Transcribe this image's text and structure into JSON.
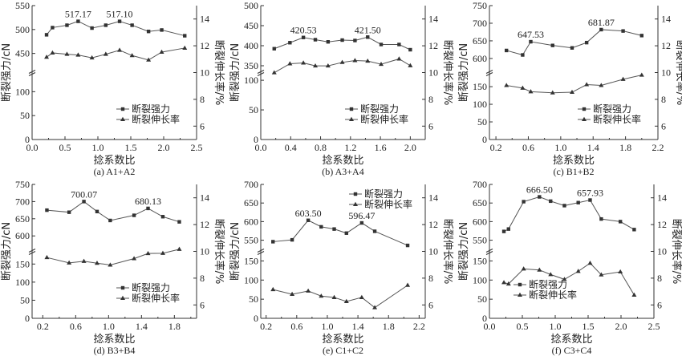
{
  "chart_data": [
    {
      "type": "line",
      "caption": "(a) A1+A2",
      "xlabel": "捻系数比",
      "ylabel_left": "断裂强力/cN",
      "ylabel_right": "断裂伸长率/%",
      "xlim": [
        0,
        2.5
      ],
      "x_ticks": [
        "0.0",
        "0.5",
        "1.0",
        "1.5",
        "2.0",
        "2.5"
      ],
      "left_lower_range": [
        0,
        140
      ],
      "left_upper_range": [
        410,
        550
      ],
      "left_ticks_lower": [
        "0",
        "50",
        "100"
      ],
      "left_ticks_upper": [
        "450",
        "500",
        "550"
      ],
      "right_range": [
        5,
        15
      ],
      "right_ticks": [
        "6",
        "8",
        "10",
        "12",
        "14"
      ],
      "legend": {
        "position": "bottom-right",
        "entries": [
          "断裂强力",
          "断裂伸长率"
        ]
      },
      "series": [
        {
          "name": "断裂强力",
          "axis": "left",
          "marker": "square",
          "x": [
            0.22,
            0.31,
            0.53,
            0.7,
            0.91,
            1.12,
            1.33,
            1.52,
            1.77,
            1.97,
            2.32
          ],
          "y": [
            489,
            504,
            509,
            517.17,
            503,
            509,
            517.1,
            509,
            496,
            499,
            487
          ]
        },
        {
          "name": "断裂伸长率",
          "axis": "right",
          "marker": "triangle",
          "x": [
            0.22,
            0.31,
            0.53,
            0.7,
            0.91,
            1.12,
            1.33,
            1.52,
            1.77,
            1.97,
            2.32
          ],
          "y": [
            11.15,
            11.47,
            11.37,
            11.31,
            11.1,
            11.37,
            11.67,
            11.27,
            10.94,
            11.53,
            11.83
          ]
        }
      ],
      "annotations": [
        {
          "text": "517.17",
          "x": 0.7,
          "y": 517.17
        },
        {
          "text": "517.10",
          "x": 1.33,
          "y": 517.1
        }
      ]
    },
    {
      "type": "line",
      "caption": "(b) A3+A4",
      "xlabel": "捻系数比",
      "ylabel_left": "断裂强力/cN",
      "ylabel_right": "断裂伸长率/%",
      "xlim": [
        0,
        2.2
      ],
      "x_ticks": [
        "0.0",
        "0.4",
        "0.8",
        "1.2",
        "1.6",
        "2.0"
      ],
      "left_lower_range": [
        0,
        113
      ],
      "left_upper_range": [
        333,
        500
      ],
      "left_ticks_lower": [
        "0",
        "50",
        "100"
      ],
      "left_ticks_upper": [
        "350",
        "400",
        "450",
        "500"
      ],
      "right_range": [
        5,
        15
      ],
      "right_ticks": [
        "6",
        "8",
        "10",
        "12",
        "14"
      ],
      "legend": {
        "position": "bottom-right",
        "entries": [
          "断裂强力",
          "断裂伸长率"
        ]
      },
      "series": [
        {
          "name": "断裂强力",
          "axis": "left",
          "marker": "square",
          "x": [
            0.18,
            0.39,
            0.57,
            0.73,
            0.9,
            1.09,
            1.26,
            1.43,
            1.61,
            1.85,
            2.0
          ],
          "y": [
            392.5,
            407.5,
            420.53,
            415,
            409.6,
            414,
            413,
            421.5,
            403,
            403,
            390
          ]
        },
        {
          "name": "断裂伸长率",
          "axis": "right",
          "marker": "triangle",
          "x": [
            0.18,
            0.39,
            0.57,
            0.73,
            0.9,
            1.09,
            1.26,
            1.43,
            1.61,
            1.85,
            2.0
          ],
          "y": [
            9.99,
            10.66,
            10.72,
            10.5,
            10.5,
            10.76,
            10.9,
            10.86,
            10.62,
            11.02,
            10.52
          ]
        }
      ],
      "annotations": [
        {
          "text": "420.53",
          "x": 0.57,
          "y": 420.53
        },
        {
          "text": "421.50",
          "x": 1.43,
          "y": 421.5
        }
      ]
    },
    {
      "type": "line",
      "caption": "(c) B1+B2",
      "xlabel": "捻系数比",
      "ylabel_left": "断裂强力/cN",
      "ylabel_right": "断裂伸长率/%",
      "xlim": [
        0.12,
        2.2
      ],
      "x_ticks": [
        "0.2",
        "0.6",
        "1.0",
        "1.4",
        "1.8",
        "2.2"
      ],
      "left_lower_range": [
        0,
        190
      ],
      "left_upper_range": [
        560,
        750
      ],
      "left_ticks_lower": [
        "0",
        "50",
        "100",
        "150"
      ],
      "left_ticks_upper": [
        "600",
        "650",
        "700",
        "750"
      ],
      "right_range": [
        5,
        15
      ],
      "right_ticks": [
        "6",
        "8",
        "10",
        "12",
        "14"
      ],
      "legend": {
        "position": "bottom-right",
        "entries": [
          "断裂强力",
          "断裂伸长率"
        ]
      },
      "series": [
        {
          "name": "断裂强力",
          "axis": "left",
          "marker": "square",
          "x": [
            0.33,
            0.53,
            0.63,
            0.9,
            1.14,
            1.32,
            1.5,
            1.77,
            2.0
          ],
          "y": [
            622.7,
            610,
            647.53,
            637,
            630,
            645,
            681.87,
            678,
            665
          ]
        },
        {
          "name": "断裂伸长率",
          "axis": "right",
          "marker": "triangle",
          "x": [
            0.33,
            0.53,
            0.63,
            0.9,
            1.14,
            1.32,
            1.5,
            1.77,
            2.0
          ],
          "y": [
            9.04,
            8.84,
            8.57,
            8.49,
            8.53,
            9.1,
            9.04,
            9.5,
            9.81
          ]
        }
      ],
      "annotations": [
        {
          "text": "647.53",
          "x": 0.63,
          "y": 647.53
        },
        {
          "text": "681.87",
          "x": 1.5,
          "y": 681.87
        }
      ]
    },
    {
      "type": "line",
      "caption": "(d) B3+B4",
      "xlabel": "捻系数比",
      "ylabel_left": "断裂强力/cN",
      "ylabel_right": "断裂伸长率/%",
      "xlim": [
        0.07,
        2.07
      ],
      "x_ticks": [
        "0.2",
        "0.6",
        "1.0",
        "1.4",
        "1.8"
      ],
      "left_lower_range": [
        0,
        185
      ],
      "left_upper_range": [
        555,
        750
      ],
      "left_ticks_lower": [
        "0",
        "50",
        "100",
        "150"
      ],
      "left_ticks_upper": [
        "600",
        "650",
        "700",
        "750"
      ],
      "right_range": [
        5,
        15
      ],
      "right_ticks": [
        "6",
        "8",
        "10",
        "12",
        "14"
      ],
      "legend": {
        "position": "bottom-right",
        "entries": [
          "断裂强力",
          "断裂伸长率"
        ]
      },
      "series": [
        {
          "name": "断裂强力",
          "axis": "left",
          "marker": "square",
          "x": [
            0.25,
            0.52,
            0.7,
            0.86,
            1.02,
            1.31,
            1.48,
            1.66,
            1.86
          ],
          "y": [
            675,
            669,
            700.07,
            671,
            645,
            660,
            680.13,
            656,
            641
          ]
        },
        {
          "name": "断裂伸长率",
          "axis": "right",
          "marker": "triangle",
          "x": [
            0.25,
            0.52,
            0.7,
            0.86,
            1.02,
            1.31,
            1.48,
            1.66,
            1.86
          ],
          "y": [
            9.54,
            9.14,
            9.26,
            9.12,
            8.98,
            9.46,
            9.84,
            9.86,
            10.16
          ]
        }
      ],
      "annotations": [
        {
          "text": "700.07",
          "x": 0.7,
          "y": 700.07
        },
        {
          "text": "680.13",
          "x": 1.48,
          "y": 680.13
        }
      ]
    },
    {
      "type": "line",
      "caption": "(e) C1+C2",
      "xlabel": "捻系数比",
      "ylabel_left": "断裂强力/cN",
      "ylabel_right": "断裂伸长率/%",
      "xlim": [
        0.13,
        2.28
      ],
      "x_ticks": [
        "0.2",
        "0.6",
        "1.0",
        "1.4",
        "1.8",
        "2.2"
      ],
      "left_lower_range": [
        0,
        175
      ],
      "left_upper_range": [
        520,
        700
      ],
      "left_ticks_lower": [
        "0",
        "50",
        "100",
        "150"
      ],
      "left_ticks_upper": [
        "550",
        "600",
        "650",
        "700"
      ],
      "right_range": [
        5,
        15
      ],
      "right_ticks": [
        "6",
        "8",
        "10",
        "12",
        "14"
      ],
      "legend": {
        "position": "top-right",
        "entries": [
          "断裂强力",
          "断裂伸长率"
        ]
      },
      "series": [
        {
          "name": "断裂强力",
          "axis": "left",
          "marker": "square",
          "x": [
            0.29,
            0.54,
            0.75,
            0.92,
            1.09,
            1.25,
            1.45,
            1.62,
            2.05
          ],
          "y": [
            546,
            551,
            603.5,
            586,
            580,
            569,
            596.47,
            574,
            536
          ]
        },
        {
          "name": "断裂伸长率",
          "axis": "right",
          "marker": "triangle",
          "x": [
            0.29,
            0.54,
            0.75,
            0.92,
            1.09,
            1.25,
            1.45,
            1.62,
            2.05
          ],
          "y": [
            7.15,
            6.8,
            7.04,
            6.66,
            6.56,
            6.26,
            6.56,
            5.8,
            7.47
          ]
        }
      ],
      "annotations": [
        {
          "text": "603.50",
          "x": 0.75,
          "y": 603.5
        },
        {
          "text": "596.47",
          "x": 1.45,
          "y": 596.47
        }
      ]
    },
    {
      "type": "line",
      "caption": "(f) C3+C4",
      "xlabel": "捻系数比",
      "ylabel_left": "断裂强力/cN",
      "ylabel_right": "断裂伸长率/%",
      "xlim": [
        0,
        2.5
      ],
      "x_ticks": [
        "0.0",
        "0.5",
        "1.0",
        "1.5",
        "2.0",
        "2.5"
      ],
      "left_lower_range": [
        0,
        175
      ],
      "left_upper_range": [
        520,
        700
      ],
      "left_ticks_lower": [
        "0",
        "50",
        "100",
        "150"
      ],
      "left_ticks_upper": [
        "550",
        "600",
        "650",
        "700"
      ],
      "right_range": [
        5,
        15
      ],
      "right_ticks": [
        "6",
        "8",
        "10",
        "12",
        "14"
      ],
      "legend": {
        "position": "bottom-left",
        "entries": [
          "断裂强力",
          "断裂伸长率"
        ]
      },
      "series": [
        {
          "name": "断裂强力",
          "axis": "left",
          "marker": "square",
          "x": [
            0.22,
            0.29,
            0.52,
            0.76,
            0.93,
            1.14,
            1.35,
            1.53,
            1.7,
            1.99,
            2.2
          ],
          "y": [
            573.6,
            580,
            653.6,
            666.5,
            655,
            643,
            651,
            657.93,
            607,
            600,
            578.6
          ]
        },
        {
          "name": "断裂伸长率",
          "axis": "right",
          "marker": "triangle",
          "x": [
            0.22,
            0.29,
            0.52,
            0.76,
            0.93,
            1.14,
            1.35,
            1.53,
            1.7,
            1.99,
            2.2
          ],
          "y": [
            7.67,
            7.57,
            8.69,
            8.61,
            8.27,
            7.91,
            8.51,
            9.12,
            8.25,
            8.47,
            6.74
          ]
        }
      ],
      "annotations": [
        {
          "text": "666.50",
          "x": 0.76,
          "y": 666.5
        },
        {
          "text": "657.93",
          "x": 1.53,
          "y": 657.93
        }
      ]
    }
  ]
}
